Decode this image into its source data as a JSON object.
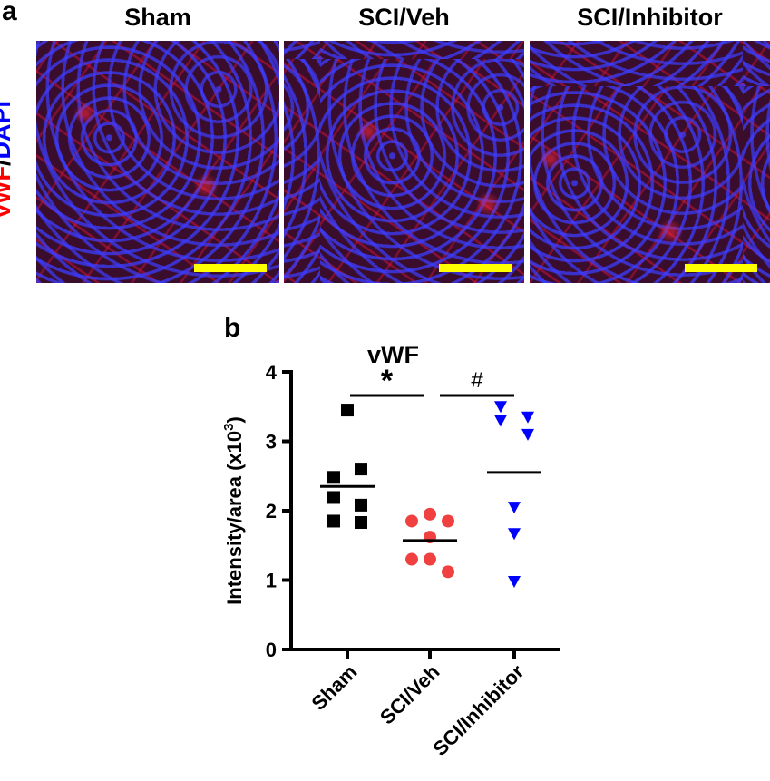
{
  "panel_a": {
    "letter": "a",
    "side_label": {
      "part1": "vWF",
      "sep": "/",
      "part2": "DAPI"
    },
    "images": [
      {
        "title": "Sham"
      },
      {
        "title": "SCI/Veh"
      },
      {
        "title": "SCI/Inhibitor"
      }
    ],
    "colors": {
      "vwf": "#ff0000",
      "dapi": "#0000ff",
      "scale_bar": "#ffff00"
    }
  },
  "panel_b": {
    "letter": "b"
  },
  "chart_data": {
    "type": "scatter",
    "title": "vWF",
    "ylabel": "Intensity/area (x10^3)",
    "xlabel": "",
    "ylim": [
      0,
      4
    ],
    "yticks": [
      0,
      1,
      2,
      3,
      4
    ],
    "categories": [
      "Sham",
      "SCI/Veh",
      "SCI/Inhibitor"
    ],
    "series": [
      {
        "category": "Sham",
        "marker": "square",
        "color": "#000000",
        "values": [
          3.45,
          2.6,
          2.48,
          2.19,
          2.08,
          1.85,
          1.83
        ],
        "mean": 2.35
      },
      {
        "category": "SCI/Veh",
        "marker": "circle",
        "color": "#f04040",
        "values": [
          1.95,
          1.85,
          1.85,
          1.62,
          1.3,
          1.3,
          1.12
        ],
        "mean": 1.57
      },
      {
        "category": "SCI/Inhibitor",
        "marker": "triangle-down",
        "color": "#0000ff",
        "values": [
          3.5,
          3.35,
          3.3,
          3.1,
          2.05,
          1.67,
          0.98
        ],
        "mean": 2.55
      }
    ],
    "annotations": [
      {
        "text": "*",
        "from": "Sham",
        "to": "SCI/Veh"
      },
      {
        "text": "#",
        "from": "SCI/Veh",
        "to": "SCI/Inhibitor"
      }
    ],
    "grid": false
  }
}
